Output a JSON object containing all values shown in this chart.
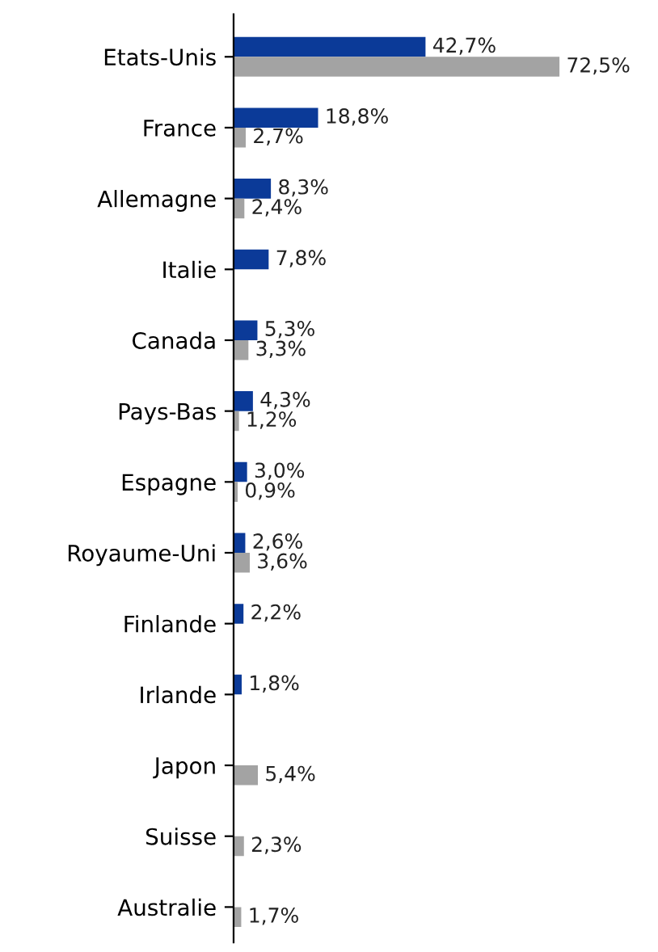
{
  "chart_data": {
    "type": "bar",
    "orientation": "horizontal",
    "tick_labels": "y",
    "grid": false,
    "legend": false,
    "categories": [
      "Etats-Unis",
      "France",
      "Allemagne",
      "Italie",
      "Canada",
      "Pays-Bas",
      "Espagne",
      "Royaume-Uni",
      "Finlande",
      "Irlande",
      "Japon",
      "Suisse",
      "Australie"
    ],
    "series": [
      {
        "color": "#0b3a98",
        "values": [
          42.7,
          18.8,
          8.3,
          7.8,
          5.3,
          4.3,
          3.0,
          2.6,
          2.2,
          1.8,
          null,
          null,
          null
        ],
        "value_labels": [
          "42,7%",
          "18,8%",
          "8,3%",
          "7,8%",
          "5,3%",
          "4,3%",
          "3,0%",
          "2,6%",
          "2,2%",
          "1,8%",
          null,
          null,
          null
        ]
      },
      {
        "color": "#a3a3a3",
        "values": [
          72.5,
          2.7,
          2.4,
          null,
          3.3,
          1.2,
          0.9,
          3.6,
          null,
          null,
          5.4,
          2.3,
          1.7
        ],
        "value_labels": [
          "72,5%",
          "2,7%",
          "2,4%",
          null,
          "3,3%",
          "1,2%",
          "0,9%",
          "3,6%",
          null,
          null,
          "5,4%",
          "2,3%",
          "1,7%"
        ]
      }
    ]
  }
}
